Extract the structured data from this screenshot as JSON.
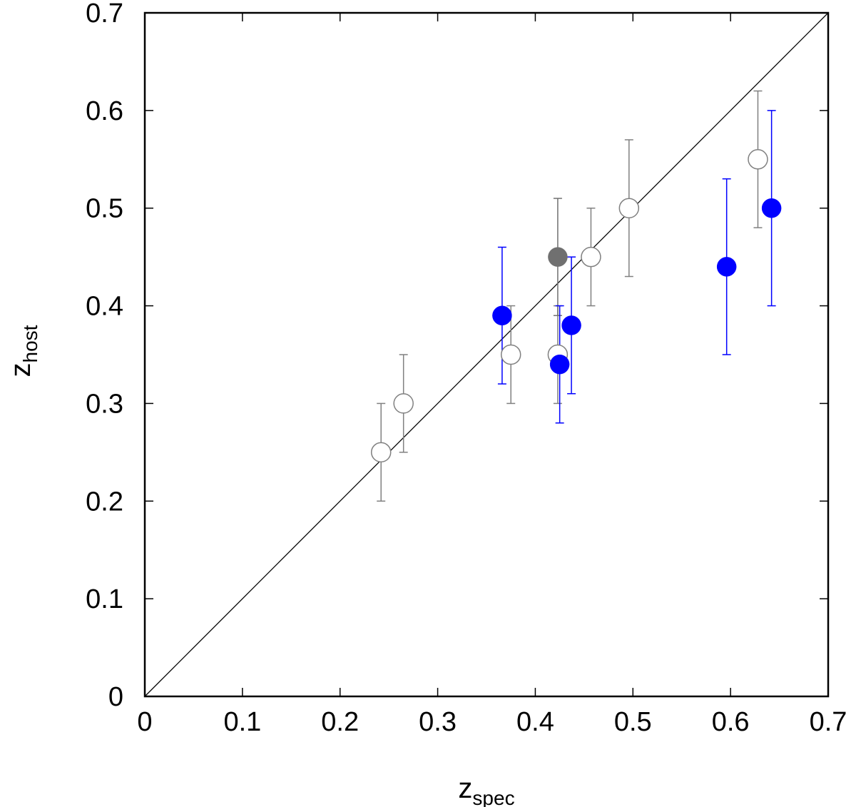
{
  "chart_data": {
    "type": "scatter",
    "title": "",
    "xlabel": {
      "base": "z",
      "sub": "spec"
    },
    "ylabel": {
      "base": "z",
      "sub": "host"
    },
    "xlim": [
      0,
      0.7
    ],
    "ylim": [
      0,
      0.7
    ],
    "xticks": [
      "0",
      "0.1",
      "0.2",
      "0.3",
      "0.4",
      "0.5",
      "0.6",
      "0.7"
    ],
    "yticks": [
      "0",
      "0.1",
      "0.2",
      "0.3",
      "0.4",
      "0.5",
      "0.6",
      "0.7"
    ],
    "grid": false,
    "reference_line": {
      "type": "y=x",
      "color": "#000000"
    },
    "series": [
      {
        "style": "open-circle",
        "color": "#808080",
        "points": [
          {
            "x": 0.242,
            "y": 0.25,
            "err_low": 0.2,
            "err_high": 0.3
          },
          {
            "x": 0.265,
            "y": 0.3,
            "err_low": 0.25,
            "err_high": 0.35
          },
          {
            "x": 0.375,
            "y": 0.35,
            "err_low": 0.3,
            "err_high": 0.4
          },
          {
            "x": 0.423,
            "y": 0.35,
            "err_low": 0.3,
            "err_high": 0.4
          },
          {
            "x": 0.457,
            "y": 0.45,
            "err_low": 0.4,
            "err_high": 0.5
          },
          {
            "x": 0.496,
            "y": 0.5,
            "err_low": 0.43,
            "err_high": 0.57
          },
          {
            "x": 0.628,
            "y": 0.55,
            "err_low": 0.48,
            "err_high": 0.62
          }
        ]
      },
      {
        "style": "filled-circle",
        "color": "#707070",
        "points": [
          {
            "x": 0.423,
            "y": 0.45,
            "err_low": 0.39,
            "err_high": 0.51
          }
        ]
      },
      {
        "style": "filled-circle",
        "color": "#0000ff",
        "points": [
          {
            "x": 0.366,
            "y": 0.39,
            "err_low": 0.32,
            "err_high": 0.46
          },
          {
            "x": 0.425,
            "y": 0.34,
            "err_low": 0.28,
            "err_high": 0.4
          },
          {
            "x": 0.437,
            "y": 0.38,
            "err_low": 0.31,
            "err_high": 0.45
          },
          {
            "x": 0.596,
            "y": 0.44,
            "err_low": 0.35,
            "err_high": 0.53
          },
          {
            "x": 0.642,
            "y": 0.5,
            "err_low": 0.4,
            "err_high": 0.6
          }
        ]
      }
    ]
  }
}
